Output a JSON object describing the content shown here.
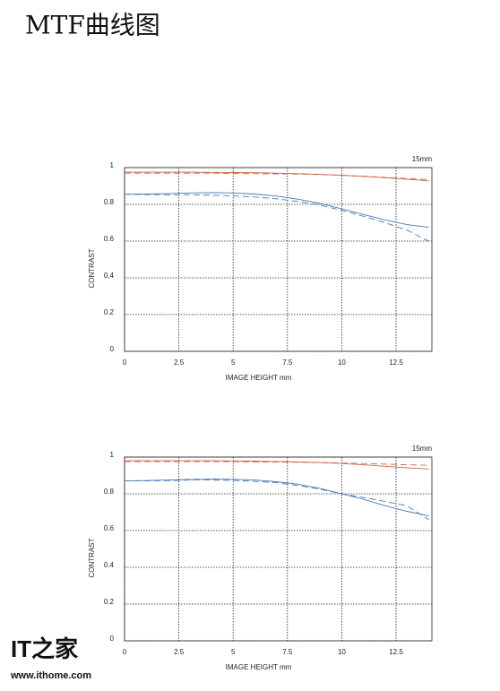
{
  "title": "MTF曲线图",
  "watermark": {
    "logo": "IT之家",
    "url": "www.ithome.com"
  },
  "chart_data": [
    {
      "type": "line",
      "annotation": "15mm",
      "xlabel": "IMAGE HEIGHT  mm",
      "ylabel": "CONTRAST",
      "xlim": [
        0,
        14.15
      ],
      "ylim": [
        0,
        1
      ],
      "xticks": [
        0,
        2.5,
        5,
        7.5,
        10,
        12.5
      ],
      "yticks": [
        0,
        0.2,
        0.4,
        0.6,
        0.8,
        1
      ],
      "grid": true,
      "x": [
        0,
        1,
        2,
        3,
        4,
        5,
        6,
        7,
        8,
        9,
        10,
        11,
        12,
        13,
        14
      ],
      "series": [
        {
          "color": "#c8644a",
          "dashed": false,
          "values": [
            0.975,
            0.975,
            0.975,
            0.975,
            0.974,
            0.973,
            0.972,
            0.97,
            0.967,
            0.963,
            0.958,
            0.952,
            0.945,
            0.937,
            0.928
          ]
        },
        {
          "color": "#c8644a",
          "dashed": true,
          "values": [
            0.97,
            0.97,
            0.97,
            0.97,
            0.97,
            0.968,
            0.967,
            0.966,
            0.965,
            0.962,
            0.958,
            0.953,
            0.947,
            0.94,
            0.935
          ]
        },
        {
          "color": "#4a7ab8",
          "dashed": false,
          "values": [
            0.855,
            0.856,
            0.858,
            0.862,
            0.864,
            0.862,
            0.856,
            0.845,
            0.828,
            0.805,
            0.775,
            0.745,
            0.715,
            0.69,
            0.675
          ]
        },
        {
          "color": "#4a7ab8",
          "dashed": true,
          "values": [
            0.855,
            0.853,
            0.852,
            0.852,
            0.85,
            0.846,
            0.84,
            0.83,
            0.815,
            0.795,
            0.768,
            0.735,
            0.7,
            0.66,
            0.6
          ]
        }
      ]
    },
    {
      "type": "line",
      "annotation": "15mm",
      "xlabel": "IMAGE HEIGHT  mm",
      "ylabel": "CONTRAST",
      "xlim": [
        0,
        14.15
      ],
      "ylim": [
        0,
        1
      ],
      "xticks": [
        0,
        2.5,
        5,
        7.5,
        10,
        12.5
      ],
      "yticks": [
        0,
        0.2,
        0.4,
        0.6,
        0.8,
        1
      ],
      "grid": true,
      "x": [
        0,
        1,
        2,
        3,
        4,
        5,
        6,
        7,
        8,
        9,
        10,
        11,
        12,
        13,
        14
      ],
      "series": [
        {
          "color": "#c8644a",
          "dashed": false,
          "values": [
            0.98,
            0.98,
            0.98,
            0.98,
            0.98,
            0.979,
            0.978,
            0.976,
            0.973,
            0.97,
            0.965,
            0.958,
            0.95,
            0.942,
            0.935
          ]
        },
        {
          "color": "#c8644a",
          "dashed": true,
          "values": [
            0.975,
            0.975,
            0.975,
            0.975,
            0.975,
            0.975,
            0.974,
            0.973,
            0.972,
            0.97,
            0.968,
            0.965,
            0.962,
            0.958,
            0.955
          ]
        },
        {
          "color": "#4a7ab8",
          "dashed": false,
          "values": [
            0.87,
            0.872,
            0.875,
            0.878,
            0.88,
            0.879,
            0.875,
            0.866,
            0.852,
            0.83,
            0.8,
            0.77,
            0.735,
            0.705,
            0.68
          ]
        },
        {
          "color": "#4a7ab8",
          "dashed": true,
          "values": [
            0.87,
            0.87,
            0.872,
            0.875,
            0.875,
            0.873,
            0.868,
            0.86,
            0.845,
            0.825,
            0.8,
            0.78,
            0.758,
            0.735,
            0.66
          ]
        }
      ]
    }
  ]
}
